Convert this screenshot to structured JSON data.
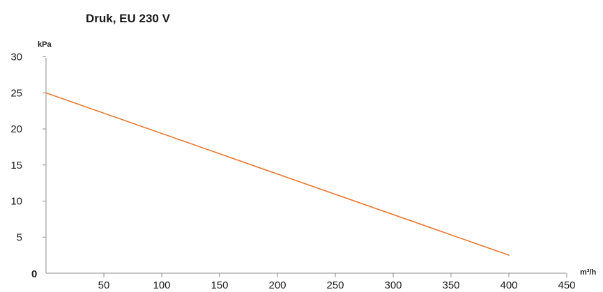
{
  "chart_data": {
    "type": "line",
    "title": "Druk, EU 230 V",
    "ylabel": "kPa",
    "xlabel": "m³/h",
    "origin_label": "0",
    "xlim": [
      0,
      450
    ],
    "ylim": [
      0,
      30
    ],
    "x_ticks": [
      "50",
      "100",
      "150",
      "200",
      "250",
      "300",
      "350",
      "400",
      "450"
    ],
    "y_ticks": [
      "5",
      "10",
      "15",
      "20",
      "25",
      "30"
    ],
    "grid": false,
    "series": [
      {
        "color": "#e8772e",
        "x": [
          0,
          400
        ],
        "y": [
          25,
          2.5
        ]
      }
    ]
  }
}
